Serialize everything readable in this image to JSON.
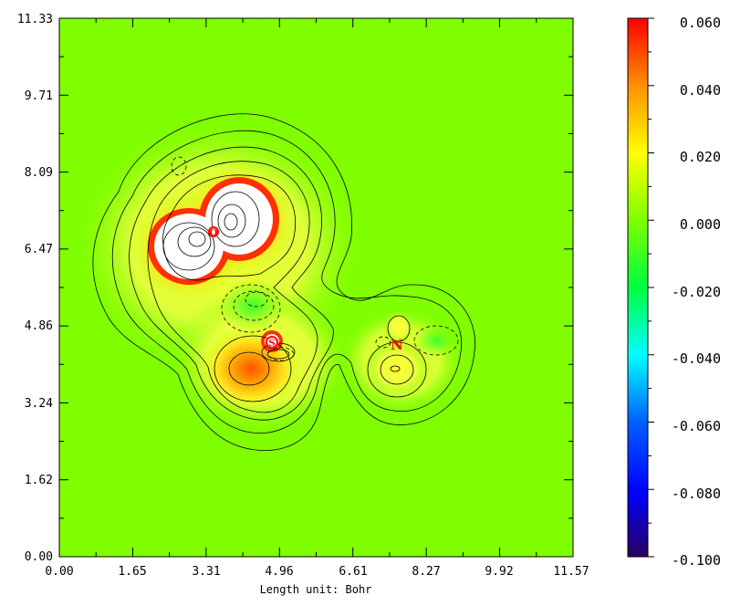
{
  "chart_data": {
    "type": "heatmap",
    "xlabel": "Length unit: Bohr",
    "ylabel": "",
    "xlim": [
      0.0,
      11.57
    ],
    "ylim": [
      0.0,
      11.33
    ],
    "x_ticks": [
      "0.00",
      "1.65",
      "3.31",
      "4.96",
      "6.61",
      "8.27",
      "9.92",
      "11.57"
    ],
    "y_ticks": [
      "0.00",
      "1.62",
      "3.24",
      "4.86",
      "6.47",
      "8.09",
      "9.71",
      "11.33"
    ],
    "colorbar": {
      "range": [
        -0.1,
        0.06
      ],
      "ticks": [
        "0.060",
        "0.040",
        "0.020",
        "0.000",
        "-0.020",
        "-0.040",
        "-0.060",
        "-0.080",
        "-0.100"
      ],
      "colormap": [
        "#2b0060",
        "#0000ff",
        "#00ffff",
        "#00ff00",
        "#7fff00",
        "#ffff00",
        "#ff8000",
        "#ff0000"
      ]
    },
    "background_value": 0.0,
    "atoms": [
      {
        "label": "O",
        "x": 3.08,
        "y": 6.92
      },
      {
        "label": "S",
        "x": 4.29,
        "y": 4.52
      },
      {
        "label": "N",
        "x": 7.18,
        "y": 4.5
      }
    ],
    "features": [
      {
        "kind": "maximum",
        "x": 2.75,
        "y": 6.75,
        "value": 0.06
      },
      {
        "kind": "maximum",
        "x": 3.6,
        "y": 7.15,
        "value": 0.06
      },
      {
        "kind": "maximum",
        "x": 4.05,
        "y": 3.9,
        "value": 0.04
      },
      {
        "kind": "maximum",
        "x": 7.0,
        "y": 3.9,
        "value": 0.02
      },
      {
        "kind": "minimum",
        "x": 4.2,
        "y": 5.5,
        "value": -0.005
      },
      {
        "kind": "minimum",
        "x": 8.0,
        "y": 4.5,
        "value": -0.005
      }
    ]
  }
}
